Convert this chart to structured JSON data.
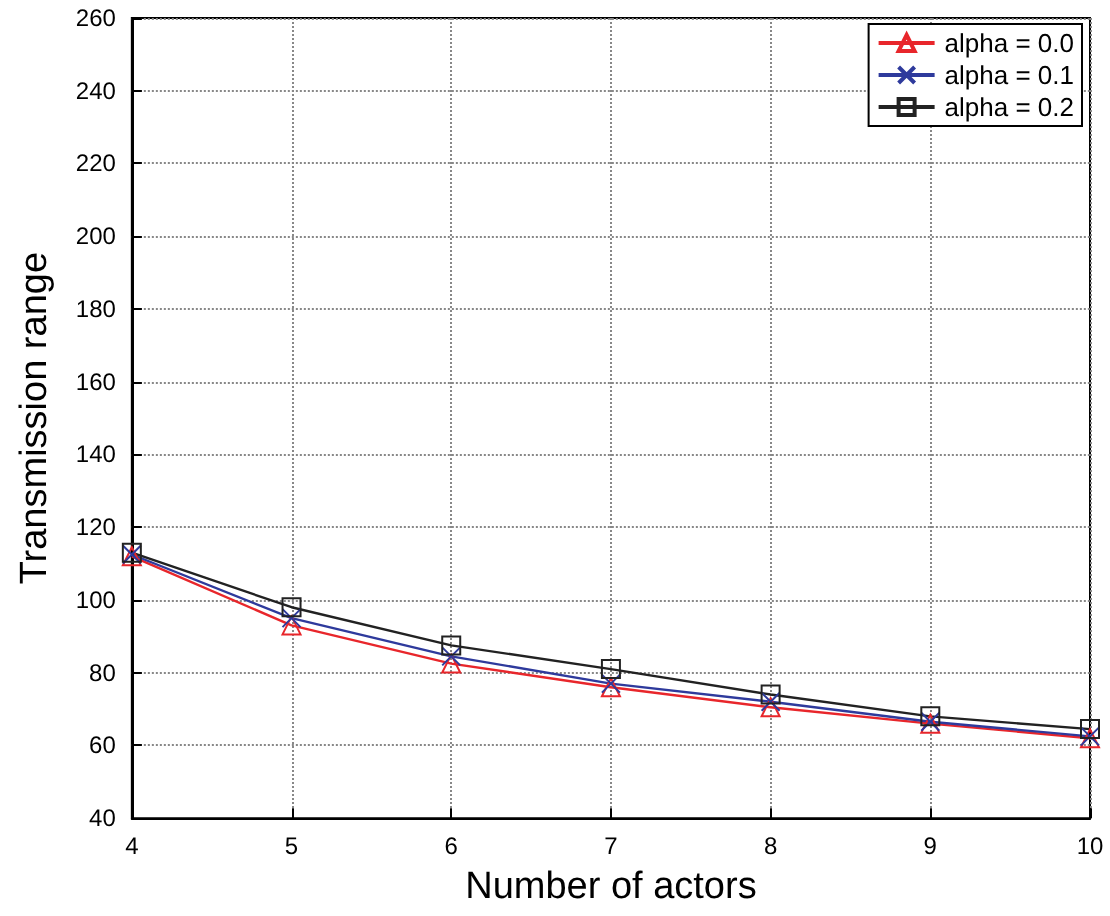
{
  "chart_data": {
    "type": "line",
    "xlabel": "Number of actors",
    "ylabel": "Transmission range",
    "x": [
      4,
      5,
      6,
      7,
      8,
      9,
      10
    ],
    "xlim": [
      4,
      10
    ],
    "xticks": [
      4,
      5,
      6,
      7,
      8,
      9,
      10
    ],
    "ylim": [
      40,
      260
    ],
    "yticks": [
      40,
      60,
      80,
      100,
      120,
      140,
      160,
      180,
      200,
      220,
      240,
      260
    ],
    "grid": true,
    "legend": "top right",
    "line_style": "solid",
    "series": [
      {
        "name": "alpha = 0.0",
        "color": "#e8262b",
        "marker": "triangle",
        "values": [
          112,
          93,
          82.5,
          76,
          70.5,
          66,
          62
        ]
      },
      {
        "name": "alpha = 0.1",
        "color": "#2e3a9c",
        "marker": "cross",
        "values": [
          112.5,
          95,
          84.5,
          77,
          72,
          66.5,
          62.5
        ]
      },
      {
        "name": "alpha = 0.2",
        "color": "#222222",
        "marker": "square",
        "values": [
          113,
          98,
          87.5,
          81,
          74,
          68,
          64.5
        ]
      }
    ]
  }
}
